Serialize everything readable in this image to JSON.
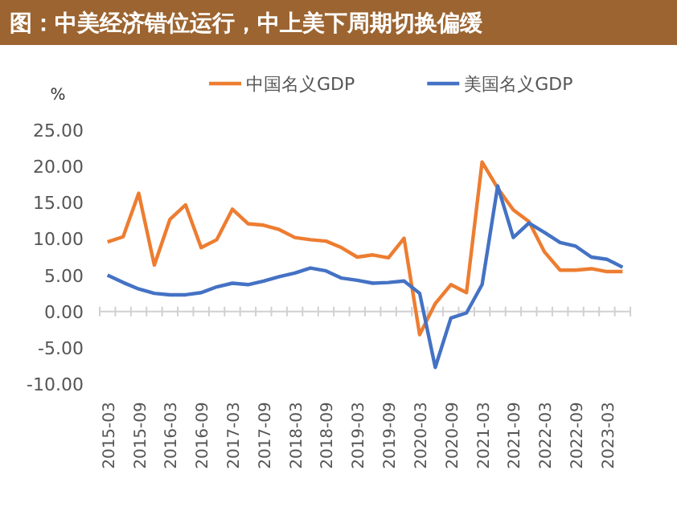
{
  "chart_data": {
    "type": "line",
    "title": "图：中美经济错位运行，中上美下周期切换偏缓",
    "ylabel": "%",
    "categories": [
      "2015-03",
      null,
      "2015-09",
      null,
      "2016-03",
      null,
      "2016-09",
      null,
      "2017-03",
      null,
      "2017-09",
      null,
      "2018-03",
      null,
      "2018-09",
      null,
      "2019-03",
      null,
      "2019-09",
      null,
      "2020-03",
      null,
      "2020-09",
      null,
      "2021-03",
      null,
      "2021-09",
      null,
      "2022-03",
      null,
      "2022-09",
      null,
      "2023-03",
      null
    ],
    "series": [
      {
        "name": "中国名义GDP",
        "color": "#ed7d31",
        "values": [
          9.6,
          10.3,
          16.3,
          6.4,
          12.7,
          14.7,
          8.8,
          9.9,
          14.1,
          12.1,
          11.9,
          11.3,
          10.2,
          9.9,
          9.7,
          8.8,
          7.5,
          7.8,
          7.4,
          10.1,
          -3.2,
          1.1,
          3.7,
          2.6,
          20.6,
          17.0,
          14.0,
          12.4,
          8.2,
          5.7,
          5.7,
          5.9,
          5.5,
          5.5
        ]
      },
      {
        "name": "美国名义GDP",
        "color": "#4472c4",
        "values": [
          5.0,
          4.0,
          3.1,
          2.5,
          2.3,
          2.3,
          2.6,
          3.4,
          3.9,
          3.7,
          4.2,
          4.8,
          5.3,
          6.0,
          5.6,
          4.6,
          4.3,
          3.9,
          4.0,
          4.2,
          2.5,
          -7.7,
          -0.9,
          -0.2,
          3.7,
          17.3,
          10.2,
          12.2,
          10.9,
          9.5,
          9.0,
          7.5,
          7.2,
          6.1
        ]
      }
    ],
    "ylim": [
      -10,
      25
    ],
    "yticks": [
      {
        "value": -10,
        "label": "-10.00"
      },
      {
        "value": -5,
        "label": "-5.00"
      },
      {
        "value": 0,
        "label": "0.00"
      },
      {
        "value": 5,
        "label": "5.00"
      },
      {
        "value": 10,
        "label": "10.00"
      },
      {
        "value": 15,
        "label": "15.00"
      },
      {
        "value": 20,
        "label": "20.00"
      },
      {
        "value": 25,
        "label": "25.00"
      }
    ],
    "legend": "top",
    "marker": "none",
    "line_style": "solid"
  }
}
